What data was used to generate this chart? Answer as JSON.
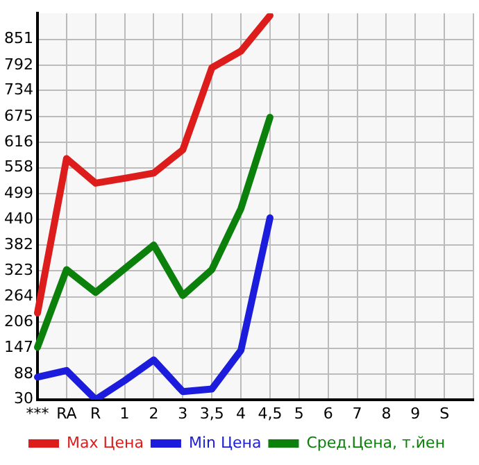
{
  "chart_data": {
    "type": "line",
    "categories": [
      "***",
      "RA",
      "R",
      "1",
      "2",
      "3",
      "3,5",
      "4",
      "4,5",
      "5",
      "6",
      "7",
      "8",
      "9",
      "S",
      null
    ],
    "ylim": [
      30,
      910
    ],
    "yticks": [
      30,
      88,
      147,
      206,
      264,
      323,
      382,
      440,
      499,
      558,
      616,
      675,
      734,
      792,
      851
    ],
    "grid": true,
    "legend": "bottom",
    "marker": "none",
    "line_style": "solid",
    "series": [
      {
        "name": "Max Цена",
        "color": "#dd1c1c",
        "values": [
          227,
          579,
          523,
          534,
          546,
          599,
          786,
          824,
          905,
          null,
          null,
          null,
          null,
          null,
          null,
          null
        ]
      },
      {
        "name": "Min Цена",
        "color": "#1c1cdd",
        "values": [
          81,
          96,
          30,
          73,
          120,
          48,
          54,
          142,
          444,
          null,
          null,
          null,
          null,
          null,
          null,
          null
        ]
      },
      {
        "name": "Сред.Цена, т.йен",
        "color": "#0b800b",
        "values": [
          149,
          326,
          274,
          328,
          382,
          267,
          326,
          465,
          673,
          null,
          null,
          null,
          null,
          null,
          null,
          null
        ]
      }
    ]
  }
}
